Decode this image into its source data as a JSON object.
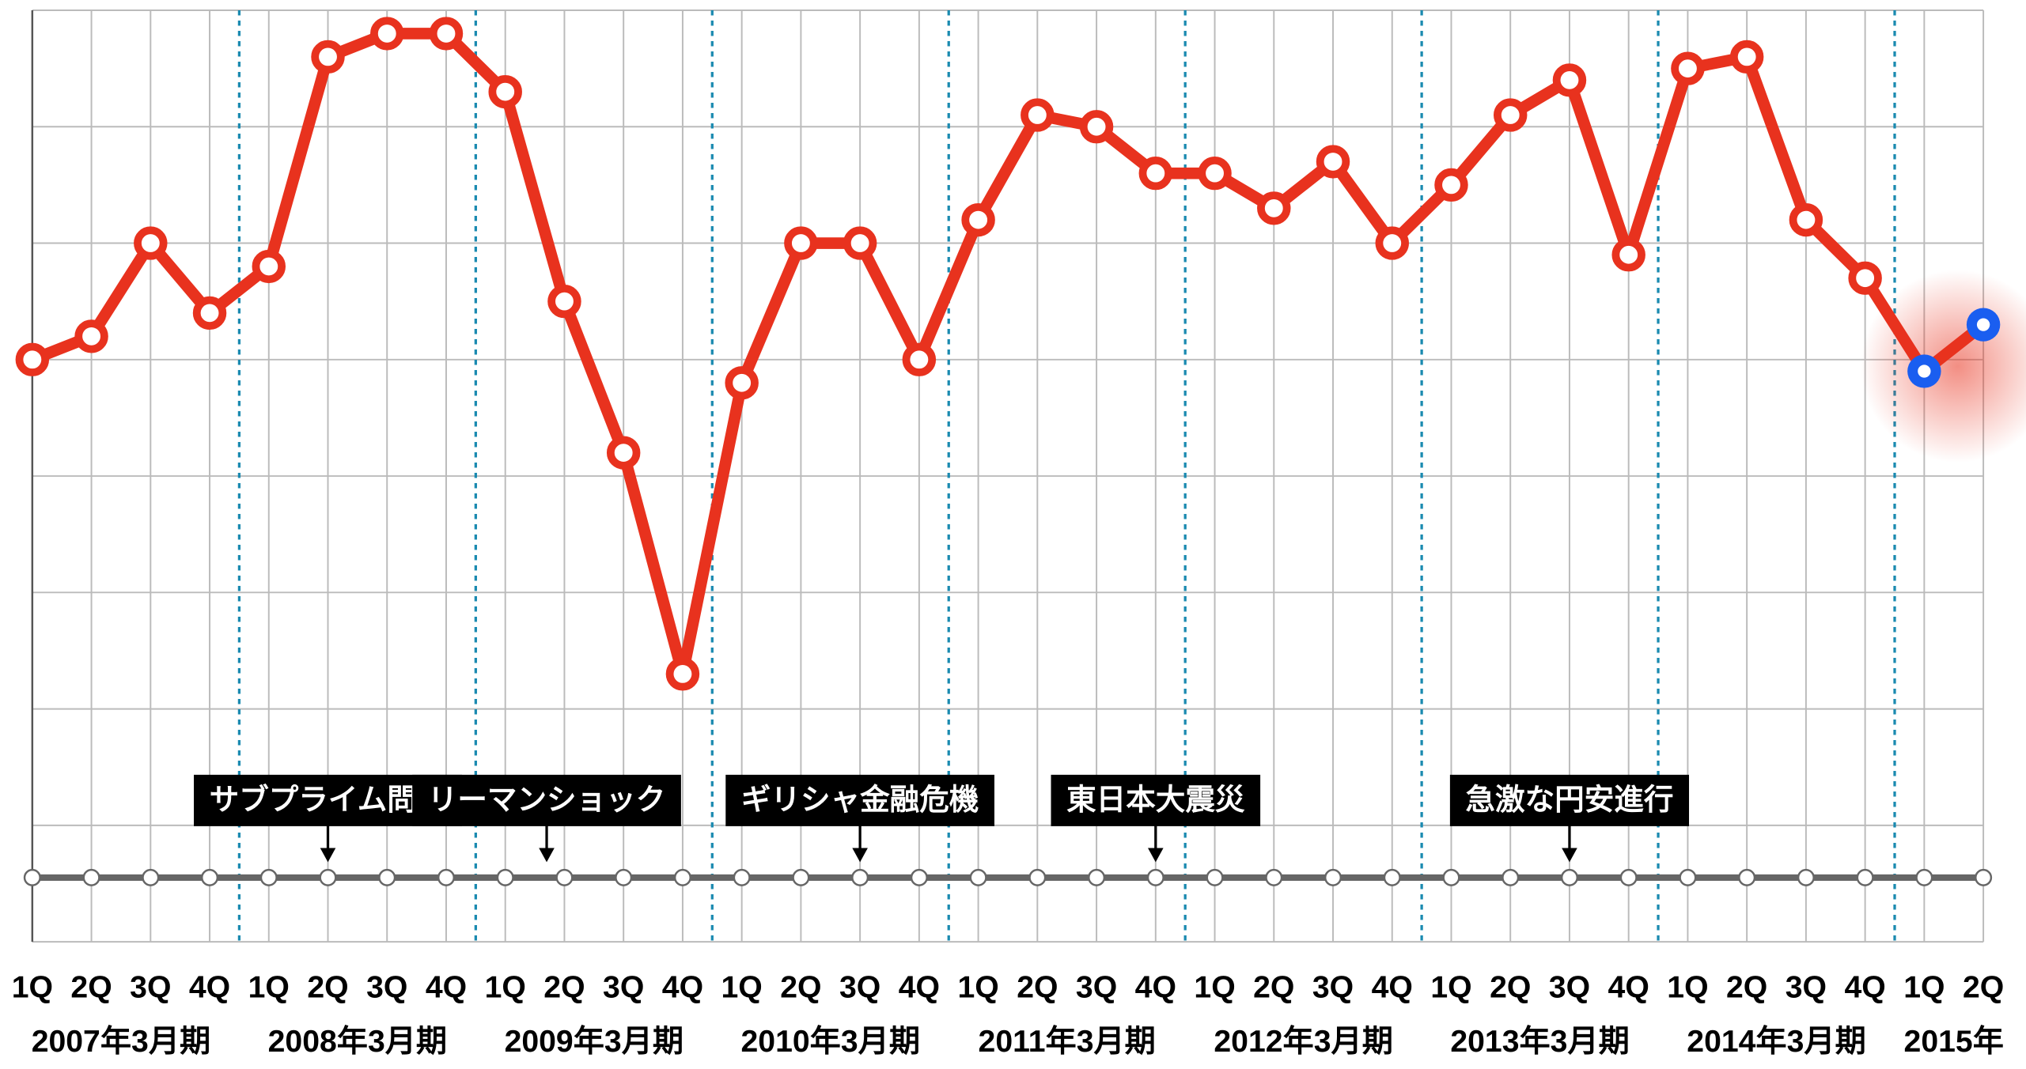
{
  "chart_data": {
    "type": "line",
    "categories": [
      "1Q",
      "2Q",
      "3Q",
      "4Q",
      "1Q",
      "2Q",
      "3Q",
      "4Q",
      "1Q",
      "2Q",
      "3Q",
      "4Q",
      "1Q",
      "2Q",
      "3Q",
      "4Q",
      "1Q",
      "2Q",
      "3Q",
      "4Q",
      "1Q",
      "2Q",
      "3Q",
      "4Q",
      "1Q",
      "2Q",
      "3Q",
      "4Q",
      "1Q",
      "2Q",
      "3Q",
      "4Q",
      "1Q",
      "2Q"
    ],
    "periods": [
      "2007年3月期",
      "2008年3月期",
      "2009年3月期",
      "2010年3月期",
      "2011年3月期",
      "2012年3月期",
      "2013年3月期",
      "2014年3月期",
      "2015年"
    ],
    "series": [
      {
        "color": "#e8321e",
        "values": [
          5.0,
          5.2,
          6.0,
          5.4,
          5.8,
          7.6,
          7.8,
          7.8,
          7.3,
          5.5,
          4.2,
          2.3,
          4.8,
          6.0,
          6.0,
          5.0,
          6.2,
          7.1,
          7.0,
          6.6,
          6.6,
          6.3,
          6.7,
          6.0,
          6.5,
          7.1,
          7.4,
          5.9,
          7.5,
          7.6,
          6.2,
          5.7,
          4.9,
          5.3
        ],
        "marker_colors": [
          "#e8321e",
          "#e8321e",
          "#e8321e",
          "#e8321e",
          "#e8321e",
          "#e8321e",
          "#e8321e",
          "#e8321e",
          "#e8321e",
          "#e8321e",
          "#e8321e",
          "#e8321e",
          "#e8321e",
          "#e8321e",
          "#e8321e",
          "#e8321e",
          "#e8321e",
          "#e8321e",
          "#e8321e",
          "#e8321e",
          "#e8321e",
          "#e8321e",
          "#e8321e",
          "#e8321e",
          "#e8321e",
          "#e8321e",
          "#e8321e",
          "#e8321e",
          "#e8321e",
          "#e8321e",
          "#e8321e",
          "#e8321e",
          "#1a5ef0",
          "#1a5ef0"
        ]
      }
    ],
    "ylim": [
      0,
      8
    ],
    "yticks": [
      0,
      1,
      2,
      3,
      4,
      5,
      6,
      7,
      8
    ],
    "grid": true,
    "events": [
      {
        "label": "サブプライム問題",
        "x": 5
      },
      {
        "label": "リーマンショック",
        "x": 8.7
      },
      {
        "label": "ギリシャ金融危機",
        "x": 14
      },
      {
        "label": "東日本大震災",
        "x": 19
      },
      {
        "label": "急激な円安進行",
        "x": 26
      }
    ]
  }
}
